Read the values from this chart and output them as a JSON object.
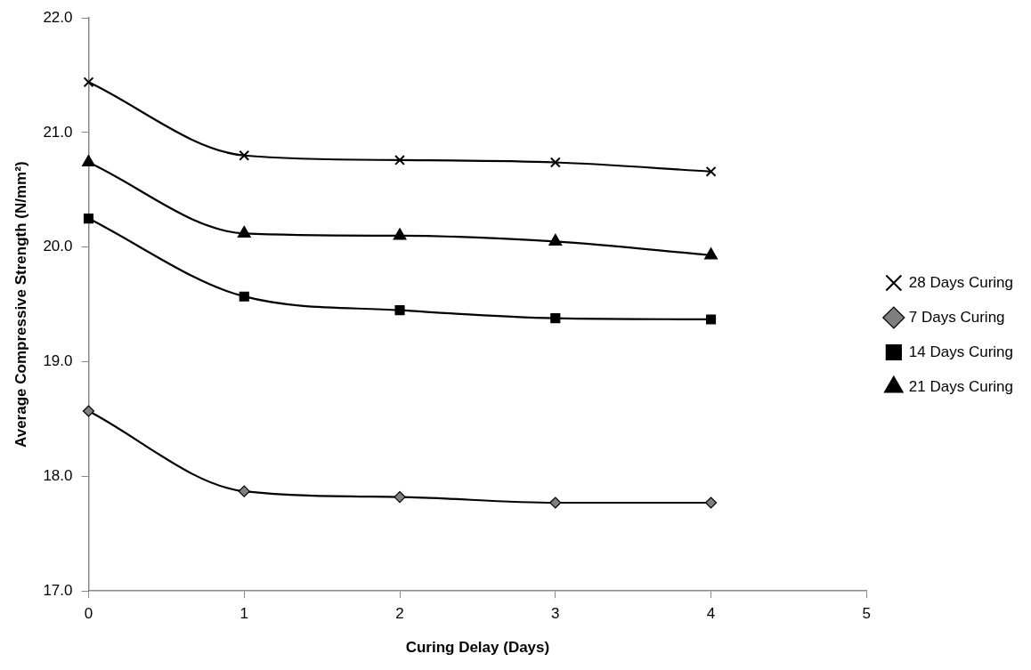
{
  "chart_data": {
    "type": "line",
    "xlabel": "Curing Delay (Days)",
    "ylabel": "Average Compressive Strength (N/mm²)",
    "x": [
      0,
      1,
      2,
      3,
      4
    ],
    "series": [
      {
        "name": "28 Days Curing",
        "color": "#000000",
        "marker": "cross",
        "values": [
          21.44,
          20.8,
          20.76,
          20.74,
          20.66
        ]
      },
      {
        "name": "7 Days Curing",
        "color": "#000000",
        "marker": "diamond",
        "values": [
          18.57,
          17.87,
          17.82,
          17.77,
          17.77
        ]
      },
      {
        "name": "14 Days Curing",
        "color": "#000000",
        "marker": "square",
        "values": [
          20.25,
          19.57,
          19.45,
          19.38,
          19.37
        ]
      },
      {
        "name": "21 Days Curing",
        "color": "#000000",
        "marker": "triangle",
        "values": [
          20.74,
          20.12,
          20.1,
          20.05,
          19.93
        ]
      }
    ],
    "xlim": [
      0,
      5
    ],
    "xticks": [
      0,
      1,
      2,
      3,
      4,
      5
    ],
    "ylim": [
      17,
      22
    ],
    "yticks": [
      {
        "value": 17,
        "label": "17.0"
      },
      {
        "value": 18,
        "label": "18.0"
      },
      {
        "value": 19,
        "label": "19.0"
      },
      {
        "value": 20,
        "label": "20.0"
      },
      {
        "value": 21,
        "label": "21.0"
      },
      {
        "value": 22,
        "label": "22.0"
      }
    ],
    "grid": false,
    "legend": "right"
  }
}
